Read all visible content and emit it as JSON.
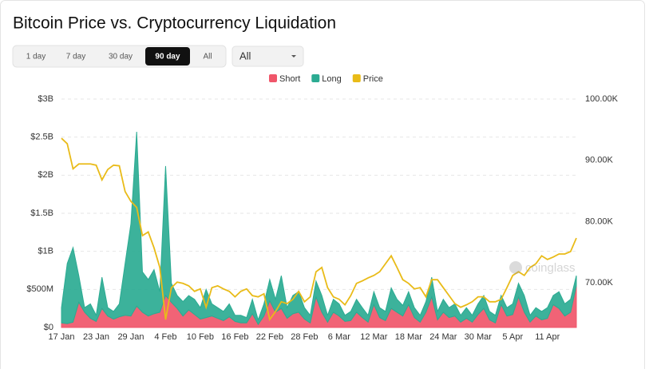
{
  "chart_data": {
    "type": "area",
    "title": "Bitcoin Price vs. Cryptocurrency Liquidation",
    "controls": {
      "ranges": [
        "1 day",
        "7 day",
        "30 day",
        "90 day",
        "All"
      ],
      "active": 3,
      "dropdown": "All"
    },
    "watermark": "coinglass",
    "categories": [
      "17 Jan",
      null,
      null,
      null,
      null,
      null,
      "23 Jan",
      null,
      null,
      null,
      null,
      null,
      "29 Jan",
      null,
      null,
      null,
      null,
      null,
      "4 Feb",
      null,
      null,
      null,
      null,
      null,
      "10 Feb",
      null,
      null,
      null,
      null,
      null,
      "16 Feb",
      null,
      null,
      null,
      null,
      null,
      "22 Feb",
      null,
      null,
      null,
      null,
      null,
      "28 Feb",
      null,
      null,
      null,
      null,
      null,
      "6 Mar",
      null,
      null,
      null,
      null,
      null,
      "12 Mar",
      null,
      null,
      null,
      null,
      null,
      "18 Mar",
      null,
      null,
      null,
      null,
      null,
      "24 Mar",
      null,
      null,
      null,
      null,
      null,
      "30 Mar",
      null,
      null,
      null,
      null,
      null,
      "5 Apr",
      null,
      null,
      null,
      null,
      null,
      "11 Apr",
      null,
      null,
      null,
      null,
      null
    ],
    "series": [
      {
        "name": "Short",
        "color": "#f0566a",
        "axis": "y",
        "values": [
          60,
          50,
          70,
          330,
          200,
          120,
          80,
          250,
          150,
          110,
          140,
          160,
          150,
          280,
          200,
          150,
          180,
          200,
          420,
          330,
          250,
          150,
          230,
          170,
          110,
          130,
          150,
          120,
          90,
          140,
          80,
          60,
          60,
          180,
          40,
          150,
          350,
          200,
          250,
          120,
          180,
          200,
          110,
          60,
          400,
          200,
          70,
          200,
          150,
          80,
          90,
          200,
          130,
          70,
          300,
          130,
          90,
          250,
          200,
          150,
          300,
          130,
          70,
          200,
          400,
          100,
          200,
          130,
          150,
          70,
          120,
          70,
          170,
          250,
          100,
          60,
          300,
          150,
          170,
          400,
          200,
          70,
          150,
          100,
          120,
          300,
          250,
          150,
          200,
          550
        ]
      },
      {
        "name": "Long",
        "color": "#2bab92",
        "axis": "y",
        "values": [
          200,
          790,
          980,
          350,
          60,
          190,
          80,
          410,
          110,
          100,
          170,
          680,
          1210,
          2290,
          530,
          480,
          580,
          270,
          1700,
          250,
          170,
          190,
          190,
          200,
          150,
          370,
          160,
          140,
          120,
          170,
          80,
          100,
          70,
          190,
          60,
          160,
          280,
          170,
          430,
          140,
          240,
          270,
          150,
          100,
          210,
          220,
          90,
          170,
          160,
          80,
          120,
          170,
          130,
          90,
          170,
          130,
          120,
          270,
          170,
          140,
          170,
          130,
          90,
          140,
          260,
          110,
          170,
          130,
          160,
          90,
          140,
          90,
          140,
          170,
          110,
          100,
          120,
          110,
          140,
          180,
          220,
          90,
          110,
          110,
          140,
          120,
          220,
          160,
          170,
          130
        ]
      },
      {
        "name": "Price",
        "color": "#e9bb18",
        "axis": "y2",
        "values": [
          93.6,
          92.7,
          88.6,
          89.4,
          89.4,
          89.4,
          89.2,
          86.8,
          88.5,
          89.2,
          89.1,
          84.9,
          83.3,
          82.3,
          77.7,
          78.3,
          75.7,
          72.5,
          64.0,
          69.2,
          70.1,
          69.9,
          69.5,
          68.6,
          69.0,
          66.0,
          69.2,
          69.5,
          69.0,
          68.6,
          67.7,
          68.6,
          69.0,
          67.9,
          67.7,
          68.2,
          64.0,
          65.3,
          66.9,
          66.6,
          67.3,
          68.6,
          66.9,
          67.7,
          71.8,
          72.5,
          69.2,
          67.7,
          67.3,
          66.4,
          67.9,
          69.9,
          70.3,
          70.8,
          71.2,
          71.8,
          73.1,
          74.4,
          72.5,
          70.5,
          69.9,
          69.0,
          69.2,
          67.7,
          70.5,
          70.5,
          69.2,
          67.9,
          66.6,
          66.0,
          66.4,
          66.9,
          67.7,
          67.7,
          66.9,
          66.9,
          67.3,
          69.2,
          71.2,
          71.8,
          71.2,
          72.5,
          73.1,
          74.4,
          73.8,
          74.2,
          74.7,
          74.7,
          75.1,
          77.3
        ]
      }
    ],
    "ylim": [
      0,
      3000
    ],
    "yticks": [
      {
        "value": 0,
        "label": "$0"
      },
      {
        "value": 500,
        "label": "$500M"
      },
      {
        "value": 1000,
        "label": "$1B"
      },
      {
        "value": 1500,
        "label": "$1.5B"
      },
      {
        "value": 2000,
        "label": "$2B"
      },
      {
        "value": 2500,
        "label": "$2.5B"
      },
      {
        "value": 3000,
        "label": "$3B"
      }
    ],
    "y2lim": [
      62.7,
      100
    ],
    "y2ticks": [
      {
        "value": 70,
        "label": "70.00K"
      },
      {
        "value": 80,
        "label": "80.00K"
      },
      {
        "value": 90,
        "label": "90.00K"
      },
      {
        "value": 100,
        "label": "100.00K"
      }
    ],
    "grid": true,
    "legend": "top"
  }
}
